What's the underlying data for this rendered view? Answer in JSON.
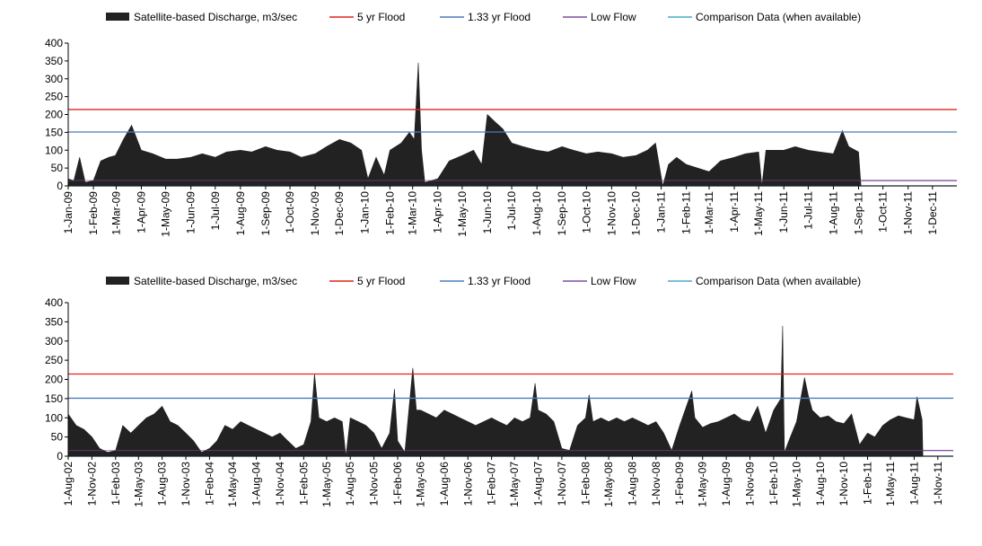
{
  "legend": {
    "discharge": "Satellite-based Discharge, m3/sec",
    "flood5": "5 yr Flood",
    "flood133": "1.33 yr Flood",
    "lowflow": "Low Flow",
    "comparison": "Comparison Data (when available)"
  },
  "colors": {
    "discharge": "#222222",
    "flood5": "#e2231a",
    "flood133": "#4a7ebb",
    "lowflow": "#7f4f9f",
    "comparison": "#4bacc6"
  },
  "chart_data": [
    {
      "type": "area",
      "x_start": "1-Jan-09",
      "x_end": "31-Dec-11",
      "ylim": [
        0,
        400
      ],
      "yticks": [
        "0",
        "50",
        "100",
        "150",
        "200",
        "250",
        "300",
        "350",
        "400"
      ],
      "xticks": [
        "1-Jan-09",
        "1-Feb-09",
        "1-Mar-09",
        "1-Apr-09",
        "1-May-09",
        "1-Jun-09",
        "1-Jul-09",
        "1-Aug-09",
        "1-Sep-09",
        "1-Oct-09",
        "1-Nov-09",
        "1-Dec-09",
        "1-Jan-10",
        "1-Feb-10",
        "1-Mar-10",
        "1-Apr-10",
        "1-May-10",
        "1-Jun-10",
        "1-Jul-10",
        "1-Aug-10",
        "1-Sep-10",
        "1-Oct-10",
        "1-Nov-10",
        "1-Dec-10",
        "1-Jan-11",
        "1-Feb-11",
        "1-Mar-11",
        "1-Apr-11",
        "1-May-11",
        "1-Jun-11",
        "1-Jul-11",
        "1-Aug-11",
        "1-Sep-11",
        "1-Oct-11",
        "1-Nov-11",
        "1-Dec-11"
      ],
      "series": [
        {
          "name": "Satellite-based Discharge, m3/sec",
          "kind": "area",
          "points": [
            [
              "1-Jan-09",
              20
            ],
            [
              "8-Jan-09",
              15
            ],
            [
              "15-Jan-09",
              80
            ],
            [
              "22-Jan-09",
              10
            ],
            [
              "1-Feb-09",
              15
            ],
            [
              "10-Feb-09",
              70
            ],
            [
              "20-Feb-09",
              80
            ],
            [
              "28-Feb-09",
              85
            ],
            [
              "10-Mar-09",
              130
            ],
            [
              "20-Mar-09",
              170
            ],
            [
              "1-Apr-09",
              100
            ],
            [
              "15-Apr-09",
              90
            ],
            [
              "1-May-09",
              75
            ],
            [
              "15-May-09",
              75
            ],
            [
              "1-Jun-09",
              80
            ],
            [
              "15-Jun-09",
              90
            ],
            [
              "1-Jul-09",
              80
            ],
            [
              "15-Jul-09",
              95
            ],
            [
              "1-Aug-09",
              100
            ],
            [
              "15-Aug-09",
              95
            ],
            [
              "1-Sep-09",
              110
            ],
            [
              "15-Sep-09",
              100
            ],
            [
              "1-Oct-09",
              95
            ],
            [
              "15-Oct-09",
              80
            ],
            [
              "1-Nov-09",
              90
            ],
            [
              "15-Nov-09",
              110
            ],
            [
              "1-Dec-09",
              130
            ],
            [
              "15-Dec-09",
              120
            ],
            [
              "28-Dec-09",
              100
            ],
            [
              "5-Jan-10",
              20
            ],
            [
              "15-Jan-10",
              80
            ],
            [
              "25-Jan-10",
              30
            ],
            [
              "1-Feb-10",
              100
            ],
            [
              "15-Feb-10",
              120
            ],
            [
              "25-Feb-10",
              150
            ],
            [
              "3-Mar-10",
              130
            ],
            [
              "8-Mar-10",
              345
            ],
            [
              "12-Mar-10",
              100
            ],
            [
              "16-Mar-10",
              10
            ],
            [
              "1-Apr-10",
              20
            ],
            [
              "15-Apr-10",
              70
            ],
            [
              "1-May-10",
              85
            ],
            [
              "15-May-10",
              100
            ],
            [
              "25-May-10",
              60
            ],
            [
              "1-Jun-10",
              200
            ],
            [
              "10-Jun-10",
              180
            ],
            [
              "20-Jun-10",
              160
            ],
            [
              "1-Jul-10",
              120
            ],
            [
              "15-Jul-10",
              110
            ],
            [
              "1-Aug-10",
              100
            ],
            [
              "15-Aug-10",
              95
            ],
            [
              "1-Sep-10",
              110
            ],
            [
              "15-Sep-10",
              100
            ],
            [
              "1-Oct-10",
              90
            ],
            [
              "15-Oct-10",
              95
            ],
            [
              "1-Nov-10",
              90
            ],
            [
              "15-Nov-10",
              80
            ],
            [
              "1-Dec-10",
              85
            ],
            [
              "15-Dec-10",
              100
            ],
            [
              "25-Dec-10",
              120
            ],
            [
              "3-Jan-11",
              0
            ],
            [
              "10-Jan-11",
              60
            ],
            [
              "20-Jan-11",
              80
            ],
            [
              "1-Feb-11",
              60
            ],
            [
              "15-Feb-11",
              50
            ],
            [
              "1-Mar-11",
              40
            ],
            [
              "15-Mar-11",
              70
            ],
            [
              "1-Apr-11",
              80
            ],
            [
              "15-Apr-11",
              90
            ],
            [
              "1-May-11",
              95
            ],
            [
              "5-May-11",
              0
            ],
            [
              "10-May-11",
              100
            ],
            [
              "1-Jun-11",
              100
            ],
            [
              "15-Jun-11",
              110
            ],
            [
              "1-Jul-11",
              100
            ],
            [
              "15-Jul-11",
              95
            ],
            [
              "1-Aug-11",
              90
            ],
            [
              "12-Aug-11",
              155
            ],
            [
              "20-Aug-11",
              110
            ],
            [
              "1-Sep-11",
              95
            ],
            [
              "4-Sep-11",
              0
            ]
          ]
        },
        {
          "name": "5 yr Flood",
          "kind": "hline",
          "value": 214
        },
        {
          "name": "1.33 yr Flood",
          "kind": "hline",
          "value": 151
        },
        {
          "name": "Low Flow",
          "kind": "hline",
          "value": 15
        },
        {
          "name": "Comparison Data (when available)",
          "kind": "hline",
          "value": 0
        }
      ]
    },
    {
      "type": "area",
      "x_start": "1-Aug-02",
      "x_end": "31-Dec-11",
      "ylim": [
        0,
        400
      ],
      "yticks": [
        "0",
        "50",
        "100",
        "150",
        "200",
        "250",
        "300",
        "350",
        "400"
      ],
      "xticks": [
        "1-Aug-02",
        "1-Nov-02",
        "1-Feb-03",
        "1-May-03",
        "1-Aug-03",
        "1-Nov-03",
        "1-Feb-04",
        "1-May-04",
        "1-Aug-04",
        "1-Nov-04",
        "1-Feb-05",
        "1-May-05",
        "1-Aug-05",
        "1-Nov-05",
        "1-Feb-06",
        "1-May-06",
        "1-Aug-06",
        "1-Nov-06",
        "1-Feb-07",
        "1-May-07",
        "1-Aug-07",
        "1-Nov-07",
        "1-Feb-08",
        "1-May-08",
        "1-Aug-08",
        "1-Nov-08",
        "1-Feb-09",
        "1-May-09",
        "1-Aug-09",
        "1-Nov-09",
        "1-Feb-10",
        "1-May-10",
        "1-Aug-10",
        "1-Nov-10",
        "1-Feb-11",
        "1-May-11",
        "1-Aug-11",
        "1-Nov-11"
      ],
      "series": [
        {
          "name": "Satellite-based Discharge, m3/sec",
          "kind": "area",
          "points": [
            [
              "1-Aug-02",
              110
            ],
            [
              "1-Sep-02",
              80
            ],
            [
              "1-Oct-02",
              70
            ],
            [
              "1-Nov-02",
              50
            ],
            [
              "1-Dec-02",
              20
            ],
            [
              "1-Jan-03",
              10
            ],
            [
              "1-Feb-03",
              15
            ],
            [
              "1-Mar-03",
              80
            ],
            [
              "1-Apr-03",
              60
            ],
            [
              "1-May-03",
              80
            ],
            [
              "1-Jun-03",
              100
            ],
            [
              "1-Jul-03",
              110
            ],
            [
              "1-Aug-03",
              130
            ],
            [
              "1-Sep-03",
              90
            ],
            [
              "1-Oct-03",
              80
            ],
            [
              "1-Nov-03",
              60
            ],
            [
              "1-Dec-03",
              40
            ],
            [
              "1-Jan-04",
              10
            ],
            [
              "1-Feb-04",
              20
            ],
            [
              "1-Mar-04",
              40
            ],
            [
              "1-Apr-04",
              80
            ],
            [
              "1-May-04",
              70
            ],
            [
              "1-Jun-04",
              90
            ],
            [
              "1-Jul-04",
              80
            ],
            [
              "1-Aug-04",
              70
            ],
            [
              "1-Sep-04",
              60
            ],
            [
              "1-Oct-04",
              50
            ],
            [
              "1-Nov-04",
              60
            ],
            [
              "1-Dec-04",
              40
            ],
            [
              "1-Jan-05",
              20
            ],
            [
              "1-Feb-05",
              30
            ],
            [
              "1-Mar-05",
              90
            ],
            [
              "15-Mar-05",
              215
            ],
            [
              "1-Apr-05",
              100
            ],
            [
              "1-May-05",
              90
            ],
            [
              "1-Jun-05",
              100
            ],
            [
              "1-Jul-05",
              90
            ],
            [
              "15-Jul-05",
              0
            ],
            [
              "1-Aug-05",
              100
            ],
            [
              "1-Sep-05",
              90
            ],
            [
              "1-Oct-05",
              80
            ],
            [
              "1-Nov-05",
              60
            ],
            [
              "1-Dec-05",
              20
            ],
            [
              "1-Jan-06",
              60
            ],
            [
              "20-Jan-06",
              175
            ],
            [
              "1-Feb-06",
              40
            ],
            [
              "1-Mar-06",
              10
            ],
            [
              "1-Apr-06",
              230
            ],
            [
              "15-Apr-06",
              120
            ],
            [
              "1-May-06",
              120
            ],
            [
              "1-Jun-06",
              110
            ],
            [
              "1-Jul-06",
              100
            ],
            [
              "1-Aug-06",
              120
            ],
            [
              "1-Sep-06",
              110
            ],
            [
              "1-Oct-06",
              100
            ],
            [
              "1-Nov-06",
              90
            ],
            [
              "1-Dec-06",
              80
            ],
            [
              "1-Jan-07",
              90
            ],
            [
              "1-Feb-07",
              100
            ],
            [
              "1-Mar-07",
              90
            ],
            [
              "1-Apr-07",
              80
            ],
            [
              "1-May-07",
              100
            ],
            [
              "1-Jun-07",
              90
            ],
            [
              "1-Jul-07",
              100
            ],
            [
              "20-Jul-07",
              190
            ],
            [
              "1-Aug-07",
              120
            ],
            [
              "1-Sep-07",
              110
            ],
            [
              "1-Oct-07",
              90
            ],
            [
              "1-Nov-07",
              20
            ],
            [
              "1-Dec-07",
              15
            ],
            [
              "1-Jan-08",
              80
            ],
            [
              "1-Feb-08",
              100
            ],
            [
              "15-Feb-08",
              160
            ],
            [
              "1-Mar-08",
              90
            ],
            [
              "1-Apr-08",
              100
            ],
            [
              "1-May-08",
              90
            ],
            [
              "1-Jun-08",
              100
            ],
            [
              "1-Jul-08",
              90
            ],
            [
              "1-Aug-08",
              100
            ],
            [
              "1-Sep-08",
              90
            ],
            [
              "1-Oct-08",
              80
            ],
            [
              "1-Nov-08",
              90
            ],
            [
              "1-Dec-08",
              60
            ],
            [
              "1-Jan-09",
              15
            ],
            [
              "1-Feb-09",
              80
            ],
            [
              "20-Mar-09",
              170
            ],
            [
              "1-Apr-09",
              100
            ],
            [
              "1-May-09",
              75
            ],
            [
              "1-Jun-09",
              85
            ],
            [
              "1-Jul-09",
              90
            ],
            [
              "1-Aug-09",
              100
            ],
            [
              "1-Sep-09",
              110
            ],
            [
              "1-Oct-09",
              95
            ],
            [
              "1-Nov-09",
              90
            ],
            [
              "1-Dec-09",
              130
            ],
            [
              "1-Jan-10",
              60
            ],
            [
              "1-Feb-10",
              120
            ],
            [
              "1-Mar-10",
              150
            ],
            [
              "8-Mar-10",
              340
            ],
            [
              "15-Mar-10",
              10
            ],
            [
              "1-Apr-10",
              40
            ],
            [
              "1-May-10",
              90
            ],
            [
              "1-Jun-10",
              205
            ],
            [
              "15-Jun-10",
              160
            ],
            [
              "1-Jul-10",
              120
            ],
            [
              "1-Aug-10",
              100
            ],
            [
              "1-Sep-10",
              105
            ],
            [
              "1-Oct-10",
              90
            ],
            [
              "1-Nov-10",
              85
            ],
            [
              "1-Dec-10",
              110
            ],
            [
              "1-Jan-11",
              30
            ],
            [
              "1-Feb-11",
              60
            ],
            [
              "1-Mar-11",
              50
            ],
            [
              "1-Apr-11",
              80
            ],
            [
              "1-May-11",
              95
            ],
            [
              "1-Jun-11",
              105
            ],
            [
              "1-Jul-11",
              100
            ],
            [
              "1-Aug-11",
              95
            ],
            [
              "12-Aug-11",
              155
            ],
            [
              "1-Sep-11",
              95
            ],
            [
              "4-Sep-11",
              0
            ]
          ]
        },
        {
          "name": "5 yr Flood",
          "kind": "hline",
          "value": 214
        },
        {
          "name": "1.33 yr Flood",
          "kind": "hline",
          "value": 151
        },
        {
          "name": "Low Flow",
          "kind": "hline",
          "value": 15
        },
        {
          "name": "Comparison Data (when available)",
          "kind": "hline",
          "value": 0
        }
      ]
    }
  ]
}
